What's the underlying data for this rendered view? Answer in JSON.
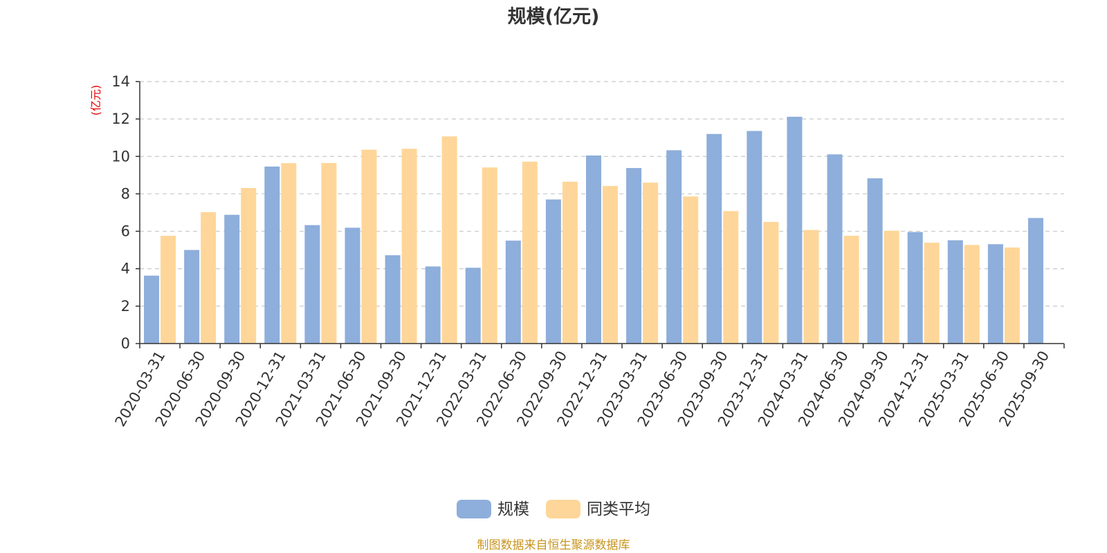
{
  "chart_data": {
    "type": "bar",
    "title": "规模(亿元)",
    "ylabel": "(亿元)",
    "xlabel": "",
    "ylim": [
      0,
      14
    ],
    "yticks": [
      0,
      2,
      4,
      6,
      8,
      10,
      12,
      14
    ],
    "grid": true,
    "legend_position": "bottom-center",
    "categories": [
      "2020-03-31",
      "2020-06-30",
      "2020-09-30",
      "2020-12-31",
      "2021-03-31",
      "2021-06-30",
      "2021-09-30",
      "2021-12-31",
      "2022-03-31",
      "2022-06-30",
      "2022-09-30",
      "2022-12-31",
      "2023-03-31",
      "2023-06-30",
      "2023-09-30",
      "2023-12-31",
      "2024-03-31",
      "2024-06-30",
      "2024-09-30",
      "2024-12-31",
      "2025-03-31",
      "2025-06-30",
      "2025-09-30"
    ],
    "series": [
      {
        "name": "规模",
        "color": "#8eaedb",
        "values": [
          3.63,
          5.0,
          6.88,
          9.46,
          6.33,
          6.19,
          4.72,
          4.12,
          4.05,
          5.5,
          7.7,
          10.05,
          9.38,
          10.33,
          11.2,
          11.36,
          12.12,
          10.11,
          8.83,
          5.96,
          5.52,
          5.31,
          6.71
        ]
      },
      {
        "name": "同类平均",
        "color": "#ffd699",
        "values": [
          5.76,
          7.02,
          8.31,
          9.64,
          9.65,
          10.36,
          10.41,
          11.07,
          9.41,
          9.72,
          8.65,
          8.42,
          8.6,
          7.86,
          7.08,
          6.5,
          6.07,
          5.76,
          6.03,
          5.39,
          5.27,
          5.13,
          null
        ]
      }
    ]
  },
  "footer": {
    "source": "制图数据来自恒生聚源数据库"
  }
}
